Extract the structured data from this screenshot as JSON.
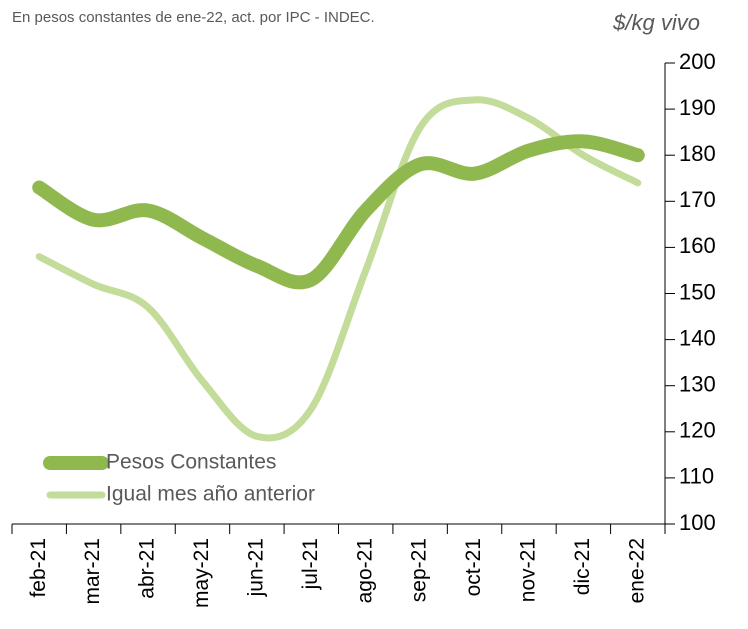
{
  "chart_data": {
    "type": "line",
    "subtitle": "En pesos constantes de ene-22, act. por IPC - INDEC.",
    "y_axis_label": "$/kg  vivo",
    "categories": [
      "feb-21",
      "mar-21",
      "abr-21",
      "may-21",
      "jun-21",
      "jul-21",
      "ago-21",
      "sep-21",
      "oct-21",
      "nov-21",
      "dic-21",
      "ene-22"
    ],
    "series": [
      {
        "name": "Pesos Constantes",
        "color": "#8fb84e",
        "values": [
          173,
          166,
          168,
          162,
          156,
          153,
          168,
          178,
          176,
          181,
          183,
          180
        ]
      },
      {
        "name": "Igual mes año anterior",
        "color": "#c3dc9a",
        "values": [
          158,
          152,
          147,
          131,
          119,
          125,
          155,
          186,
          192,
          188,
          180,
          174
        ]
      }
    ],
    "ylim": [
      100,
      200
    ],
    "yticks": [
      100,
      110,
      120,
      130,
      140,
      150,
      160,
      170,
      180,
      190,
      200
    ],
    "y_axis_side": "right",
    "legend": "lower left",
    "grid": false
  }
}
